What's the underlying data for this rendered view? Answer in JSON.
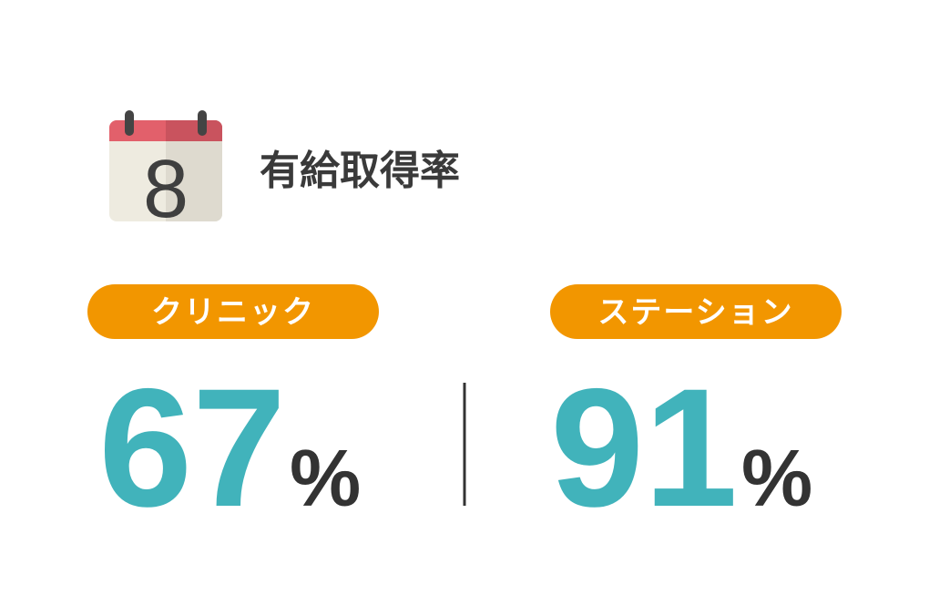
{
  "icon": {
    "day": "8"
  },
  "title": "有給取得率",
  "stats": [
    {
      "label": "クリニック",
      "value": "67",
      "unit": "%"
    },
    {
      "label": "ステーション",
      "value": "91",
      "unit": "%"
    }
  ]
}
